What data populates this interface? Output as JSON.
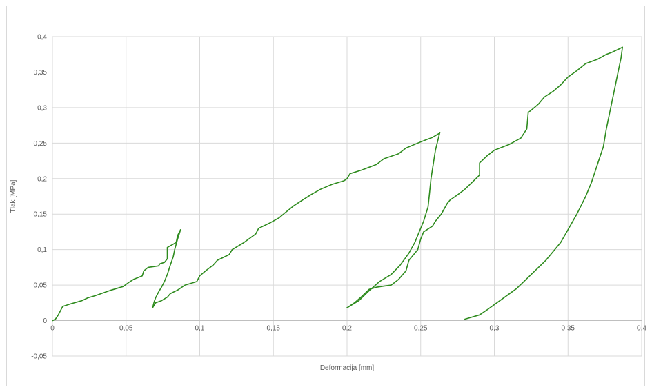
{
  "chart_data": {
    "type": "line",
    "title": "",
    "xlabel": "Deformacija [mm]",
    "ylabel": "Tlak [MPa]",
    "xlim": [
      0,
      0.4
    ],
    "ylim": [
      -0.05,
      0.4
    ],
    "grid": true,
    "line_color": "#2e8b1e",
    "x_ticks": [
      0,
      0.05,
      0.1,
      0.15,
      0.2,
      0.25,
      0.3,
      0.35,
      0.4
    ],
    "y_ticks": [
      -0.05,
      0,
      0.05,
      0.1,
      0.15,
      0.2,
      0.25,
      0.3,
      0.35,
      0.4
    ],
    "x_tick_labels": [
      "0",
      "0,05",
      "0,1",
      "0,15",
      "0,2",
      "0,25",
      "0,3",
      "0,35",
      "0,4"
    ],
    "y_tick_labels": [
      "-0,05",
      "0",
      "0,05",
      "0,1",
      "0,15",
      "0,2",
      "0,25",
      "0,3",
      "0,35",
      "0,4"
    ],
    "series": [
      {
        "x": [
          0,
          0.002,
          0.004,
          0.007,
          0.013,
          0.02,
          0.024,
          0.029,
          0.04,
          0.048,
          0.052,
          0.055,
          0.061,
          0.062,
          0.065,
          0.072,
          0.073,
          0.076,
          0.078,
          0.078,
          0.084,
          0.085,
          0.087
        ],
        "y": [
          0,
          0.002,
          0.008,
          0.02,
          0.024,
          0.028,
          0.032,
          0.035,
          0.043,
          0.048,
          0.054,
          0.058,
          0.063,
          0.07,
          0.075,
          0.077,
          0.08,
          0.082,
          0.087,
          0.103,
          0.11,
          0.12,
          0.128
        ]
      },
      {
        "x": [
          0.087,
          0.085,
          0.083,
          0.082,
          0.08,
          0.078,
          0.076,
          0.074,
          0.072,
          0.07,
          0.069,
          0.068
        ],
        "y": [
          0.128,
          0.115,
          0.1,
          0.09,
          0.078,
          0.065,
          0.055,
          0.047,
          0.04,
          0.032,
          0.026,
          0.018
        ]
      },
      {
        "x": [
          0.068,
          0.07,
          0.074,
          0.078,
          0.08,
          0.085,
          0.09,
          0.098,
          0.1,
          0.104,
          0.109,
          0.112,
          0.12,
          0.122,
          0.13,
          0.138,
          0.14,
          0.148,
          0.154,
          0.158,
          0.164,
          0.17,
          0.176,
          0.182,
          0.19,
          0.198,
          0.2,
          0.202,
          0.21,
          0.22,
          0.225,
          0.235,
          0.24,
          0.248,
          0.254,
          0.258,
          0.262,
          0.263
        ],
        "y": [
          0.018,
          0.025,
          0.028,
          0.033,
          0.038,
          0.043,
          0.05,
          0.055,
          0.063,
          0.07,
          0.078,
          0.085,
          0.093,
          0.1,
          0.11,
          0.122,
          0.13,
          0.138,
          0.145,
          0.152,
          0.162,
          0.17,
          0.178,
          0.185,
          0.192,
          0.197,
          0.2,
          0.207,
          0.212,
          0.22,
          0.228,
          0.235,
          0.243,
          0.25,
          0.255,
          0.258,
          0.263,
          0.265
        ]
      },
      {
        "x": [
          0.263,
          0.26,
          0.257,
          0.256,
          0.255,
          0.252,
          0.249,
          0.246,
          0.242,
          0.236,
          0.23,
          0.222,
          0.215,
          0.208,
          0.2
        ],
        "y": [
          0.265,
          0.24,
          0.2,
          0.18,
          0.16,
          0.14,
          0.125,
          0.11,
          0.095,
          0.078,
          0.065,
          0.055,
          0.042,
          0.028,
          0.018
        ]
      },
      {
        "x": [
          0.2,
          0.205,
          0.21,
          0.215,
          0.22,
          0.23,
          0.235,
          0.24,
          0.242,
          0.248,
          0.25,
          0.252,
          0.258,
          0.26,
          0.264,
          0.268,
          0.27,
          0.275,
          0.28,
          0.285,
          0.29,
          0.29,
          0.295,
          0.3,
          0.31,
          0.318,
          0.322,
          0.323,
          0.326,
          0.33,
          0.334,
          0.34,
          0.345,
          0.35,
          0.356,
          0.362,
          0.37,
          0.376,
          0.38,
          0.385,
          0.387
        ],
        "y": [
          0.018,
          0.025,
          0.034,
          0.044,
          0.047,
          0.05,
          0.058,
          0.07,
          0.085,
          0.1,
          0.115,
          0.125,
          0.133,
          0.14,
          0.15,
          0.165,
          0.17,
          0.177,
          0.185,
          0.195,
          0.205,
          0.222,
          0.232,
          0.24,
          0.248,
          0.257,
          0.27,
          0.293,
          0.298,
          0.305,
          0.315,
          0.323,
          0.332,
          0.343,
          0.352,
          0.362,
          0.368,
          0.375,
          0.378,
          0.383,
          0.385
        ]
      },
      {
        "x": [
          0.387,
          0.386,
          0.384,
          0.382,
          0.379,
          0.376,
          0.374,
          0.37,
          0.366,
          0.362,
          0.356,
          0.35,
          0.345,
          0.335,
          0.325,
          0.315,
          0.305,
          0.295,
          0.29,
          0.28
        ],
        "y": [
          0.385,
          0.37,
          0.35,
          0.33,
          0.3,
          0.27,
          0.245,
          0.22,
          0.195,
          0.175,
          0.15,
          0.128,
          0.11,
          0.085,
          0.065,
          0.045,
          0.03,
          0.015,
          0.008,
          0.002
        ]
      }
    ]
  }
}
